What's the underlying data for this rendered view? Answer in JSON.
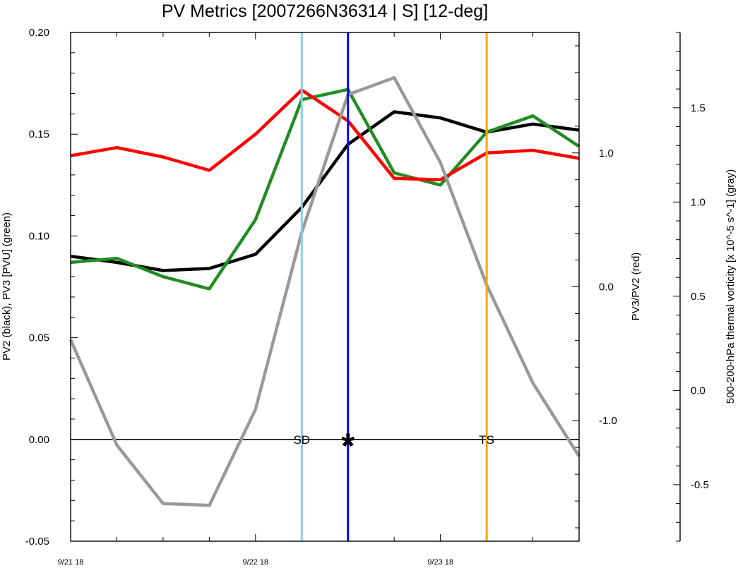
{
  "chart_data": {
    "type": "line",
    "title": "PV Metrics [2007266N36314 | S] [12-deg]",
    "x_tick_labels": [
      "9/21 18",
      "9/22 18",
      "9/23 18"
    ],
    "x": [
      0,
      3,
      6,
      9,
      12,
      15,
      18,
      21,
      24,
      27,
      30,
      33
    ],
    "x_ticks_hours": [
      0,
      12,
      24
    ],
    "x_range_hours": [
      0,
      33
    ],
    "axes": {
      "left": {
        "label": "PV2 (black), PV3 [PVU] (green)",
        "ylim": [
          -0.05,
          0.2
        ],
        "ticks": [
          "-0.05",
          "0.00",
          "0.05",
          "0.10",
          "0.15",
          "0.20"
        ]
      },
      "right1": {
        "label": "PV3/PV2 (red)",
        "ylim": [
          -1.9,
          1.9
        ],
        "ticks": [
          "-1.0",
          "0.0",
          "1.0"
        ]
      },
      "right2": {
        "label": "500-200-hPa thermal vorticity [x 10^-5 s^-1] (gray)",
        "ylim": [
          -0.8,
          1.9
        ],
        "ticks": [
          "-0.5",
          "0.0",
          "0.5",
          "1.0",
          "1.5"
        ]
      }
    },
    "series": [
      {
        "color": "#000000",
        "axis": "left",
        "values": [
          0.09,
          0.087,
          0.083,
          0.084,
          0.091,
          0.114,
          0.145,
          0.161,
          0.158,
          0.151,
          0.155,
          0.152
        ]
      },
      {
        "color": "#228B22",
        "axis": "left",
        "values": [
          0.087,
          0.089,
          0.08,
          0.074,
          0.108,
          0.167,
          0.172,
          0.131,
          0.125,
          0.151,
          0.159,
          0.144
        ]
      },
      {
        "color": "#FF0000",
        "axis": "right1",
        "values": [
          0.98,
          1.04,
          0.97,
          0.87,
          1.14,
          1.47,
          1.24,
          0.81,
          0.8,
          1.0,
          1.02,
          0.96
        ]
      },
      {
        "color": "#999999",
        "axis": "right2",
        "values": [
          0.27,
          -0.29,
          -0.6,
          -0.61,
          -0.1,
          0.84,
          1.57,
          1.66,
          1.21,
          0.56,
          0.04,
          -0.35
        ]
      }
    ],
    "zero_line": 0.0,
    "vertical_lines": [
      {
        "hour": 15,
        "color": "#87CEEB",
        "label": "SD"
      },
      {
        "hour": 18,
        "color": "#0000FF",
        "label": "*"
      },
      {
        "hour": 27,
        "color": "#FFA500",
        "label": "TS"
      }
    ],
    "grid": false,
    "legend": "none"
  }
}
